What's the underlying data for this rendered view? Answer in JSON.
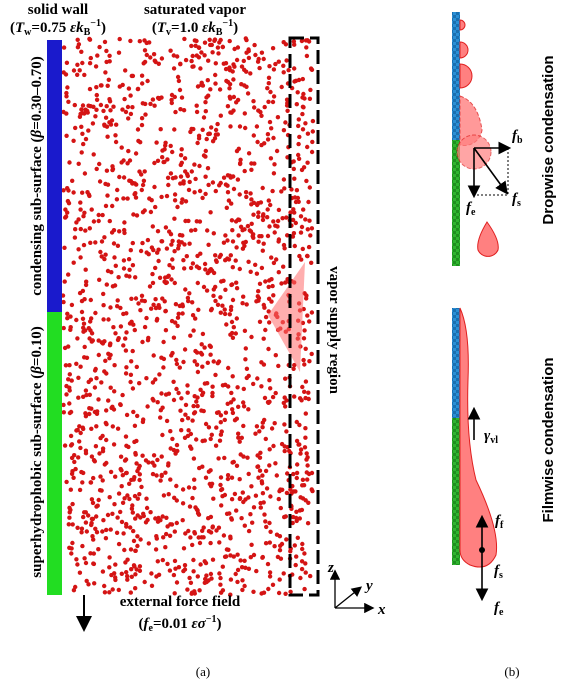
{
  "panel_a": {
    "wall_title": "solid wall",
    "wall_temp": [
      "(",
      "T",
      "w",
      "=0.75 ",
      "ε",
      "k",
      "B",
      "−1",
      ")"
    ],
    "vapor_title": "saturated vapor",
    "vapor_temp": [
      "(",
      "T",
      "v",
      "=1.0 ",
      "ε",
      "k",
      "B",
      "−1",
      ")"
    ],
    "condensing_label": [
      "condensing sub-surface (",
      "β",
      "=0.30–0.70)"
    ],
    "superhydrophobic_label": [
      "superhydrophobic sub-surface (",
      "β",
      "=0.10)"
    ],
    "supply_label": "vapor supply region",
    "force_title": "external force field",
    "force_value": [
      "(",
      "f",
      "e",
      "=0.01 ",
      "εσ",
      "−1",
      ")"
    ],
    "axes": {
      "z": "z",
      "y": "y",
      "x": "x"
    },
    "caption": "(a)"
  },
  "panel_b": {
    "dropwise_title": "Dropwise condensation",
    "dropwise_forces": [
      [
        "f",
        "b"
      ],
      [
        "f",
        "e"
      ],
      [
        "f",
        "s"
      ]
    ],
    "filmwise_title": "Filmwise condensation",
    "filmwise_forces": [
      [
        "γ",
        "vl"
      ],
      [
        "f",
        "f"
      ],
      [
        "f",
        "s"
      ],
      [
        "f",
        "e"
      ]
    ],
    "caption": "(b)"
  }
}
